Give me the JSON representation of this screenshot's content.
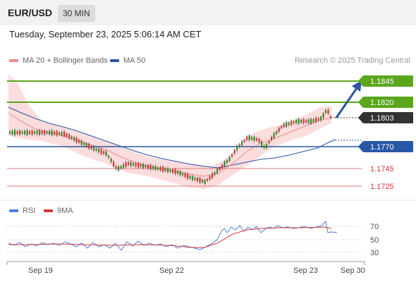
{
  "header": {
    "symbol": "EUR/USD",
    "timeframe": "30 MIN"
  },
  "datetime": "Tuesday, September 23, 2025 5:06:14 AM CET",
  "legend": {
    "ma20_label": "MA 20 + Bollinger Bands",
    "ma50_label": "MA 50",
    "credit": "Research © 2025 Trading Central"
  },
  "rsi_legend": {
    "rsi_label": "RSI",
    "ma_label": "9MA"
  },
  "colors": {
    "green": "#5aa61d",
    "blue": "#2a56a6",
    "red": "#d43a3a",
    "dark": "#333333",
    "ma20": "#ef8a8a",
    "ma50": "#2a56a6",
    "band": "#fcd9d9",
    "candle": "#3a8a2a",
    "rsi": "#4f7fdc"
  },
  "price_levels": [
    {
      "label": "1.1845",
      "style": "green-box"
    },
    {
      "label": "1.1820",
      "style": "green-box"
    },
    {
      "label": "1.1803",
      "style": "dark-box"
    },
    {
      "label": "1.1770",
      "style": "blue-box"
    },
    {
      "label": "1.1745",
      "style": "red-text"
    },
    {
      "label": "1.1725",
      "style": "red-text"
    }
  ],
  "rsi_axis": [
    "70",
    "50",
    "30"
  ],
  "x_axis": [
    "Sep 19",
    "Sep 22",
    "Sep 23",
    "Sep 30"
  ]
}
